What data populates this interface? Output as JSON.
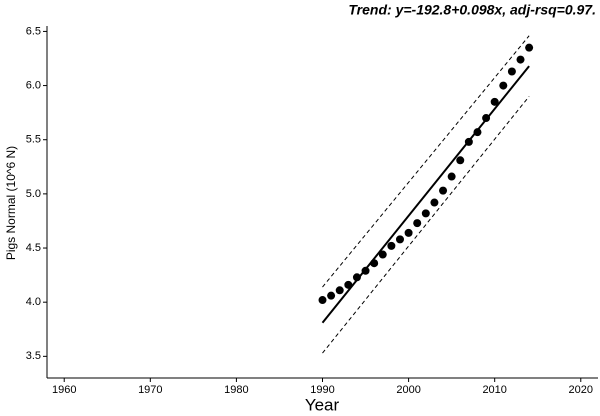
{
  "chart_data": {
    "type": "scatter",
    "annotation": "Trend: y=-192.8+0.098x, adj-rsq=0.97.",
    "x_label": "Year",
    "y_label": "Pigs Normal (10^6 N)",
    "xlim": [
      1958,
      2022
    ],
    "ylim": [
      3.3,
      6.55
    ],
    "xticks": [
      1960,
      1970,
      1980,
      1990,
      2000,
      2010,
      2020
    ],
    "yticks": [
      3.5,
      {
        "value": 4,
        "label": "4.0"
      },
      4.5,
      {
        "value": 5,
        "label": "5.0"
      },
      5.5,
      {
        "value": 6,
        "label": "6.0"
      },
      6.5
    ],
    "series": [
      {
        "color": "#000000",
        "style": "points",
        "x": [
          1990,
          1991,
          1992,
          1993,
          1994,
          1995,
          1996,
          1997,
          1998,
          1999,
          2000,
          2001,
          2002,
          2003,
          2004,
          2005,
          2006,
          2007,
          2008,
          2009,
          2010,
          2011,
          2012,
          2013,
          2014
        ],
        "values": [
          4.02,
          4.06,
          4.11,
          4.16,
          4.23,
          4.29,
          4.36,
          4.44,
          4.52,
          4.58,
          4.64,
          4.73,
          4.82,
          4.92,
          5.03,
          5.16,
          5.31,
          5.48,
          5.57,
          5.7,
          5.85,
          6.0,
          6.13,
          6.24,
          6.35
        ]
      },
      {
        "color": "#000000",
        "style": "solid",
        "x": [
          1990,
          2014
        ],
        "values": [
          3.81,
          6.18
        ]
      },
      {
        "color": "#000000",
        "style": "dashed",
        "x": [
          1990,
          2014
        ],
        "values": [
          4.14,
          6.46
        ]
      },
      {
        "color": "#000000",
        "style": "dashed",
        "x": [
          1990,
          2014
        ],
        "values": [
          3.53,
          5.9
        ]
      }
    ]
  }
}
